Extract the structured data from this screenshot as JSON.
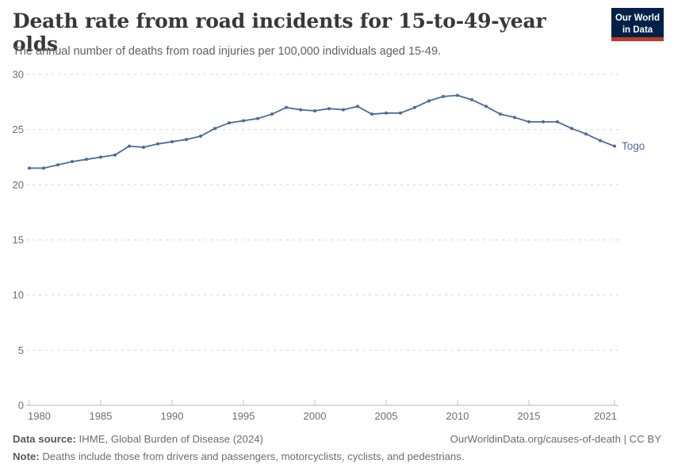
{
  "header": {
    "title": "Death rate from road incidents for 15-to-49-year olds",
    "subtitle": "The annual number of deaths from road injuries per 100,000 individuals aged 15-49.",
    "logo": {
      "line1": "Our World",
      "line2": "in Data",
      "bg_color": "#002147",
      "stripe_color": "#c0392b",
      "text_color": "#ffffff"
    }
  },
  "chart_data": {
    "type": "line",
    "title": "Death rate from road incidents for 15-to-49-year olds",
    "subtitle": "The annual number of deaths from road injuries per 100,000 individuals aged 15-49.",
    "xlabel": "",
    "ylabel": "",
    "xlim": [
      1980,
      2021
    ],
    "ylim": [
      0,
      30
    ],
    "x_ticks": [
      1980,
      1985,
      1990,
      1995,
      2000,
      2005,
      2010,
      2015,
      2021
    ],
    "y_ticks": [
      0,
      5,
      10,
      15,
      20,
      25,
      30
    ],
    "grid": "horizontal-dashed",
    "legend_position": "end-of-line-label",
    "x": [
      1980,
      1981,
      1982,
      1983,
      1984,
      1985,
      1986,
      1987,
      1988,
      1989,
      1990,
      1991,
      1992,
      1993,
      1994,
      1995,
      1996,
      1997,
      1998,
      1999,
      2000,
      2001,
      2002,
      2003,
      2004,
      2005,
      2006,
      2007,
      2008,
      2009,
      2010,
      2011,
      2012,
      2013,
      2014,
      2015,
      2016,
      2017,
      2018,
      2019,
      2020,
      2021
    ],
    "series": [
      {
        "name": "Togo",
        "color": "#4c6a9c",
        "values": [
          21.5,
          21.5,
          21.8,
          22.1,
          22.3,
          22.5,
          22.7,
          23.5,
          23.4,
          23.7,
          23.9,
          24.1,
          24.4,
          25.1,
          25.6,
          25.8,
          26.0,
          26.4,
          27.0,
          26.8,
          26.7,
          26.9,
          26.8,
          27.1,
          26.4,
          26.5,
          26.5,
          27.0,
          27.6,
          28.0,
          28.1,
          27.7,
          27.1,
          26.4,
          26.1,
          25.7,
          25.7,
          25.7,
          25.1,
          24.6,
          24.0,
          23.5
        ]
      }
    ],
    "entity_label": "Togo",
    "axis_text_color": "#6e6e6e",
    "gridline_color": "#d6d6d6",
    "axis_line_color": "#b3b3b3"
  },
  "footer": {
    "datasource_label": "Data source:",
    "datasource_value": " IHME, Global Burden of Disease (2024)",
    "rights_text": "OurWorldinData.org/causes-of-death | CC BY",
    "note_label": "Note:",
    "note_value": " Deaths include those from drivers and passengers, motorcyclists, cyclists, and pedestrians."
  }
}
